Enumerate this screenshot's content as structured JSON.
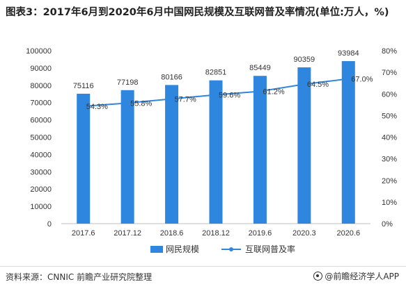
{
  "title": "图表3：2017年6月到2020年6月中国网民规模及互联网普及率情况(单位:万人，%)",
  "source": "资料来源：CNNIC 前瞻产业研究院整理",
  "brand": "@前瞻经济学人APP",
  "colors": {
    "bar": "#2e86de",
    "line": "#2e86de",
    "grid": "#e0e0e0",
    "text": "#333333"
  },
  "chart_data": {
    "type": "bar",
    "title": "图表3：2017年6月到2020年6月中国网民规模及互联网普及率情况(单位:万人，%)",
    "categories": [
      "2017.6",
      "2017.12",
      "2018.6",
      "2018.12",
      "2019.6",
      "2020.3",
      "2020.6"
    ],
    "ylim": [
      0,
      100000
    ],
    "y_ticks": [
      "0",
      "10000",
      "20000",
      "30000",
      "40000",
      "50000",
      "60000",
      "70000",
      "80000",
      "90000",
      "100000"
    ],
    "y2lim": [
      0,
      80
    ],
    "y2_ticks": [
      "0%",
      "10%",
      "20%",
      "30%",
      "40%",
      "50%",
      "60%",
      "70%",
      "80%"
    ],
    "grid": false,
    "legend_position": "bottom",
    "series": [
      {
        "name": "网民规模",
        "type": "bar",
        "axis": "left",
        "values": [
          75116,
          77198,
          80166,
          82851,
          85449,
          90359,
          93984
        ],
        "labels": [
          "75116",
          "77198",
          "80166",
          "82851",
          "85449",
          "90359",
          "93984"
        ]
      },
      {
        "name": "互联网普及率",
        "type": "line",
        "axis": "right",
        "values": [
          54.3,
          55.8,
          57.7,
          59.6,
          61.2,
          64.5,
          67.0
        ],
        "labels": [
          "54.3%",
          "55.8%",
          "57.7%",
          "59.6%",
          "61.2%",
          "64.5%",
          "67.0%"
        ]
      }
    ]
  }
}
